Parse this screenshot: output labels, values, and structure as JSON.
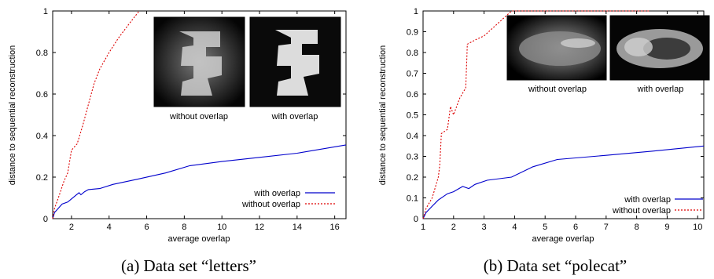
{
  "chart_data": [
    {
      "type": "line",
      "caption": "(a) Data set “letters”",
      "xlabel": "average overlap",
      "ylabel": "distance to sequential reconstruction",
      "xlim": [
        1,
        16.6
      ],
      "ylim": [
        0,
        1
      ],
      "xticks": [
        2,
        4,
        6,
        8,
        10,
        12,
        14,
        16
      ],
      "yticks": [
        0,
        0.2,
        0.4,
        0.6,
        0.8,
        1
      ],
      "ytick_labels": [
        "0",
        "0.2",
        "0.4",
        "0.6",
        "0.8",
        "1"
      ],
      "legend_position": "bottom-right",
      "series": [
        {
          "name": "with overlap",
          "color": "#0000cc",
          "dash": "solid",
          "points": [
            [
              1.0,
              0.0
            ],
            [
              1.1,
              0.03
            ],
            [
              1.3,
              0.05
            ],
            [
              1.5,
              0.07
            ],
            [
              1.8,
              0.08
            ],
            [
              2.0,
              0.095
            ],
            [
              2.2,
              0.11
            ],
            [
              2.4,
              0.125
            ],
            [
              2.5,
              0.115
            ],
            [
              2.7,
              0.13
            ],
            [
              2.9,
              0.14
            ],
            [
              3.5,
              0.145
            ],
            [
              4.2,
              0.165
            ],
            [
              5.5,
              0.19
            ],
            [
              7.0,
              0.22
            ],
            [
              8.3,
              0.255
            ],
            [
              10.0,
              0.275
            ],
            [
              12.0,
              0.295
            ],
            [
              14.0,
              0.315
            ],
            [
              16.6,
              0.355
            ]
          ]
        },
        {
          "name": "without overlap",
          "color": "#dd0000",
          "dash": "dotted",
          "points": [
            [
              1.0,
              0.0
            ],
            [
              1.1,
              0.05
            ],
            [
              1.3,
              0.1
            ],
            [
              1.6,
              0.18
            ],
            [
              1.8,
              0.22
            ],
            [
              2.0,
              0.33
            ],
            [
              2.3,
              0.36
            ],
            [
              2.6,
              0.45
            ],
            [
              2.9,
              0.55
            ],
            [
              3.2,
              0.65
            ],
            [
              3.5,
              0.72
            ],
            [
              4.0,
              0.8
            ],
            [
              4.5,
              0.87
            ],
            [
              5.0,
              0.93
            ],
            [
              5.6,
              1.0
            ]
          ]
        }
      ],
      "insets": [
        {
          "label": "without overlap"
        },
        {
          "label": "with overlap"
        }
      ]
    },
    {
      "type": "line",
      "caption": "(b) Data set “polecat”",
      "xlabel": "average overlap",
      "ylabel": "distance to sequential reconstruction",
      "xlim": [
        1,
        10.2
      ],
      "ylim": [
        0,
        1
      ],
      "xticks": [
        1,
        2,
        3,
        4,
        5,
        6,
        7,
        8,
        9,
        10
      ],
      "yticks": [
        0,
        0.1,
        0.2,
        0.3,
        0.4,
        0.5,
        0.6,
        0.7,
        0.8,
        0.9,
        1
      ],
      "ytick_labels": [
        "0",
        "0.1",
        "0.2",
        "0.3",
        "0.4",
        "0.5",
        "0.6",
        "0.7",
        "0.8",
        "0.9",
        "1"
      ],
      "legend_position": "bottom-right",
      "series": [
        {
          "name": "with overlap",
          "color": "#0000cc",
          "dash": "solid",
          "points": [
            [
              1.0,
              0.0
            ],
            [
              1.1,
              0.03
            ],
            [
              1.3,
              0.06
            ],
            [
              1.5,
              0.09
            ],
            [
              1.8,
              0.12
            ],
            [
              2.0,
              0.13
            ],
            [
              2.3,
              0.155
            ],
            [
              2.5,
              0.145
            ],
            [
              2.7,
              0.165
            ],
            [
              3.1,
              0.185
            ],
            [
              3.9,
              0.2
            ],
            [
              4.6,
              0.25
            ],
            [
              5.4,
              0.285
            ],
            [
              7.0,
              0.305
            ],
            [
              8.5,
              0.325
            ],
            [
              10.2,
              0.35
            ]
          ]
        },
        {
          "name": "without overlap",
          "color": "#dd0000",
          "dash": "dotted",
          "points": [
            [
              1.0,
              0.0
            ],
            [
              1.1,
              0.05
            ],
            [
              1.3,
              0.1
            ],
            [
              1.4,
              0.15
            ],
            [
              1.5,
              0.2
            ],
            [
              1.55,
              0.26
            ],
            [
              1.6,
              0.41
            ],
            [
              1.8,
              0.43
            ],
            [
              1.9,
              0.54
            ],
            [
              2.0,
              0.5
            ],
            [
              2.1,
              0.54
            ],
            [
              2.2,
              0.58
            ],
            [
              2.4,
              0.63
            ],
            [
              2.45,
              0.84
            ],
            [
              2.7,
              0.86
            ],
            [
              3.0,
              0.88
            ],
            [
              3.3,
              0.92
            ],
            [
              3.6,
              0.96
            ],
            [
              3.9,
              1.0
            ],
            [
              8.4,
              1.0
            ]
          ]
        }
      ],
      "insets": [
        {
          "label": "without overlap"
        },
        {
          "label": "with overlap"
        }
      ]
    }
  ]
}
